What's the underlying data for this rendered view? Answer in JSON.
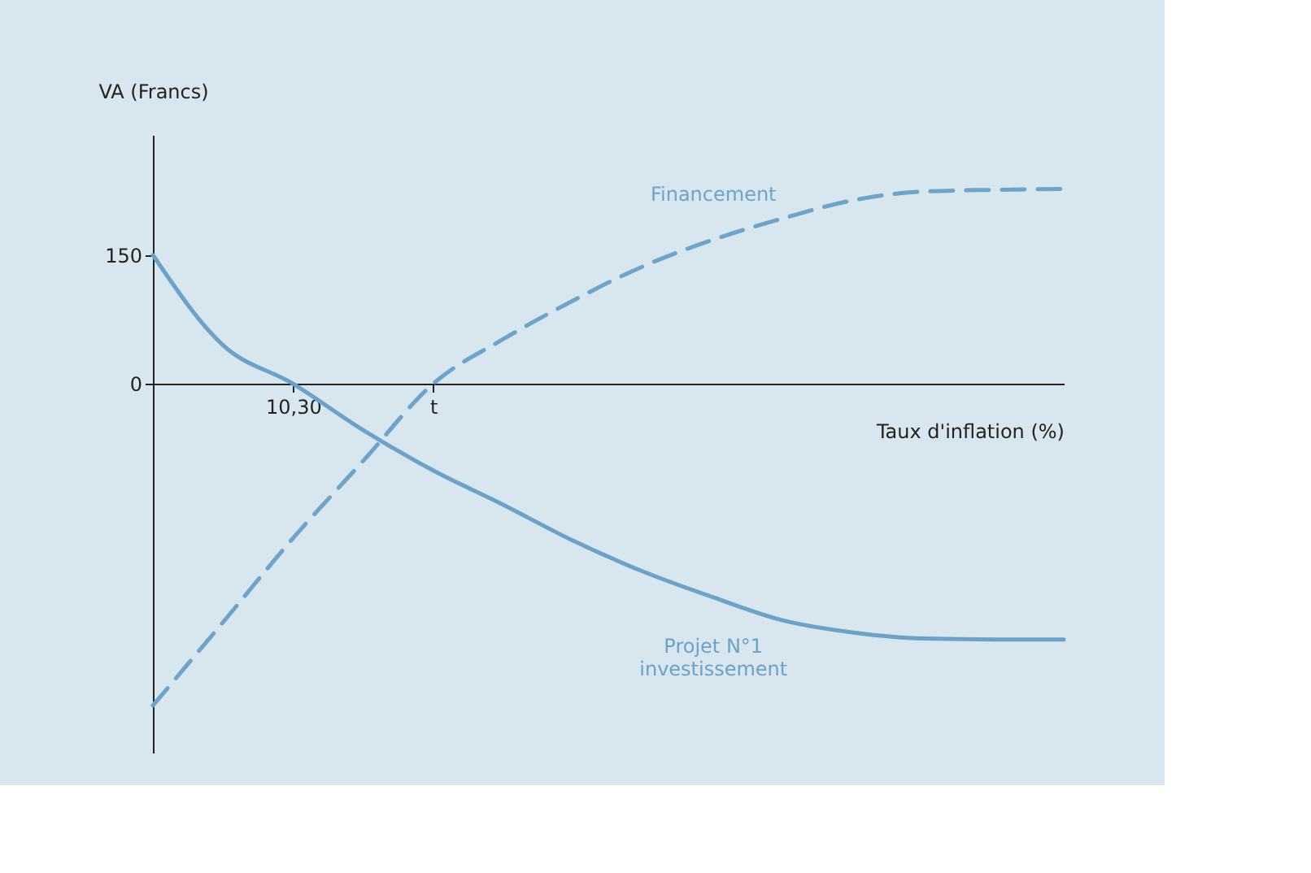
{
  "chart_data": {
    "type": "line",
    "xlabel": "Taux d'inflation (%)",
    "ylabel": "VA (Francs)",
    "categories": [
      null,
      null,
      "10,30",
      null,
      "t",
      null,
      null,
      null,
      null,
      null,
      null,
      null,
      null,
      null
    ],
    "ylim": [
      -430,
      290
    ],
    "yticks": [
      0,
      150
    ],
    "grid": false,
    "series": [
      {
        "name": "Projet N°1\ninvestissement",
        "color": "#6ea1c6",
        "line_style": "solid",
        "values": [
          150,
          45,
          0,
          -54,
          -101,
          -141,
          -183,
          -219,
          -249,
          -276,
          -290,
          -297,
          -298,
          -298
        ]
      },
      {
        "name": "Financement",
        "color": "#6fa3c8",
        "line_style": "dashed",
        "values": [
          -375,
          -278,
          -180,
          -90,
          0,
          52,
          97,
          137,
          168,
          193,
          214,
          224,
          226,
          227
        ]
      }
    ]
  }
}
